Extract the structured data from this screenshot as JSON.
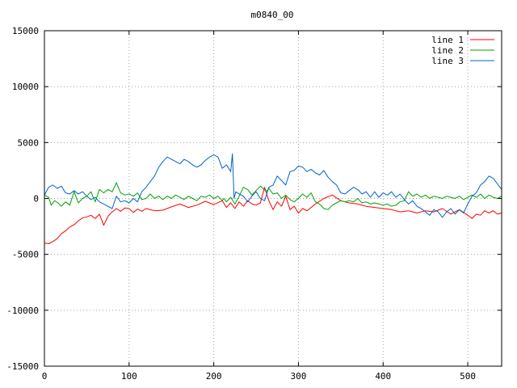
{
  "chart_data": {
    "type": "line",
    "title": "m0840_00",
    "xlabel": "",
    "ylabel": "",
    "xlim": [
      0,
      540
    ],
    "ylim": [
      -15000,
      15000
    ],
    "x_ticks": [
      0,
      100,
      200,
      300,
      400,
      500
    ],
    "y_ticks": [
      -15000,
      -10000,
      -5000,
      0,
      5000,
      10000,
      15000
    ],
    "grid": true,
    "legend_position": "top-right",
    "series": [
      {
        "name": "line 1",
        "color": "#ff0000",
        "points": [
          [
            0,
            -4000
          ],
          [
            5,
            -4050
          ],
          [
            10,
            -3850
          ],
          [
            15,
            -3600
          ],
          [
            20,
            -3150
          ],
          [
            25,
            -2900
          ],
          [
            30,
            -2550
          ],
          [
            35,
            -2350
          ],
          [
            40,
            -2000
          ],
          [
            45,
            -1750
          ],
          [
            50,
            -1650
          ],
          [
            55,
            -1500
          ],
          [
            60,
            -1800
          ],
          [
            65,
            -1400
          ],
          [
            70,
            -2400
          ],
          [
            75,
            -1600
          ],
          [
            80,
            -1200
          ],
          [
            85,
            -900
          ],
          [
            90,
            -1150
          ],
          [
            95,
            -850
          ],
          [
            100,
            -900
          ],
          [
            105,
            -1250
          ],
          [
            110,
            -950
          ],
          [
            115,
            -1150
          ],
          [
            120,
            -900
          ],
          [
            130,
            -1100
          ],
          [
            140,
            -1050
          ],
          [
            150,
            -750
          ],
          [
            160,
            -500
          ],
          [
            170,
            -800
          ],
          [
            180,
            -600
          ],
          [
            190,
            -250
          ],
          [
            200,
            -550
          ],
          [
            210,
            -200
          ],
          [
            215,
            -800
          ],
          [
            220,
            -400
          ],
          [
            225,
            -900
          ],
          [
            230,
            -300
          ],
          [
            235,
            -700
          ],
          [
            240,
            -200
          ],
          [
            245,
            -500
          ],
          [
            250,
            -600
          ],
          [
            255,
            -400
          ],
          [
            260,
            1000
          ],
          [
            265,
            -200
          ],
          [
            270,
            -1000
          ],
          [
            275,
            -300
          ],
          [
            280,
            -700
          ],
          [
            285,
            200
          ],
          [
            290,
            -1000
          ],
          [
            295,
            -700
          ],
          [
            300,
            -1300
          ],
          [
            305,
            -900
          ],
          [
            310,
            -1100
          ],
          [
            315,
            -800
          ],
          [
            320,
            -500
          ],
          [
            330,
            0
          ],
          [
            340,
            300
          ],
          [
            350,
            -200
          ],
          [
            360,
            -400
          ],
          [
            370,
            -500
          ],
          [
            380,
            -700
          ],
          [
            390,
            -800
          ],
          [
            400,
            -900
          ],
          [
            410,
            -1000
          ],
          [
            420,
            -1200
          ],
          [
            430,
            -1100
          ],
          [
            440,
            -1300
          ],
          [
            450,
            -1100
          ],
          [
            460,
            -1200
          ],
          [
            470,
            -900
          ],
          [
            480,
            -1400
          ],
          [
            490,
            -1000
          ],
          [
            500,
            -1500
          ],
          [
            505,
            -1800
          ],
          [
            510,
            -1400
          ],
          [
            515,
            -1500
          ],
          [
            520,
            -1100
          ],
          [
            525,
            -1300
          ],
          [
            530,
            -1100
          ],
          [
            535,
            -1400
          ],
          [
            540,
            -1300
          ]
        ]
      },
      {
        "name": "line 2",
        "color": "#00a000",
        "points": [
          [
            0,
            300
          ],
          [
            5,
            100
          ],
          [
            8,
            -600
          ],
          [
            12,
            -200
          ],
          [
            16,
            -400
          ],
          [
            20,
            -700
          ],
          [
            25,
            -300
          ],
          [
            30,
            -600
          ],
          [
            35,
            600
          ],
          [
            40,
            -400
          ],
          [
            45,
            0
          ],
          [
            50,
            200
          ],
          [
            55,
            600
          ],
          [
            60,
            -300
          ],
          [
            65,
            800
          ],
          [
            70,
            500
          ],
          [
            75,
            800
          ],
          [
            80,
            600
          ],
          [
            85,
            1400
          ],
          [
            90,
            500
          ],
          [
            95,
            300
          ],
          [
            100,
            400
          ],
          [
            105,
            200
          ],
          [
            110,
            500
          ],
          [
            115,
            -100
          ],
          [
            120,
            0
          ],
          [
            125,
            400
          ],
          [
            130,
            0
          ],
          [
            135,
            200
          ],
          [
            140,
            -100
          ],
          [
            145,
            200
          ],
          [
            150,
            0
          ],
          [
            155,
            300
          ],
          [
            160,
            100
          ],
          [
            165,
            -100
          ],
          [
            170,
            200
          ],
          [
            175,
            0
          ],
          [
            180,
            -200
          ],
          [
            185,
            200
          ],
          [
            190,
            100
          ],
          [
            195,
            300
          ],
          [
            200,
            0
          ],
          [
            205,
            200
          ],
          [
            210,
            -200
          ],
          [
            212,
            0
          ],
          [
            215,
            -300
          ],
          [
            220,
            100
          ],
          [
            225,
            -500
          ],
          [
            230,
            200
          ],
          [
            235,
            1000
          ],
          [
            240,
            800
          ],
          [
            245,
            300
          ],
          [
            250,
            700
          ],
          [
            255,
            1100
          ],
          [
            258,
            900
          ],
          [
            262,
            600
          ],
          [
            265,
            900
          ],
          [
            270,
            400
          ],
          [
            275,
            500
          ],
          [
            280,
            0
          ],
          [
            285,
            300
          ],
          [
            290,
            -100
          ],
          [
            295,
            -300
          ],
          [
            300,
            0
          ],
          [
            305,
            400
          ],
          [
            310,
            100
          ],
          [
            315,
            500
          ],
          [
            320,
            -300
          ],
          [
            325,
            -500
          ],
          [
            330,
            -900
          ],
          [
            335,
            -1000
          ],
          [
            340,
            -600
          ],
          [
            345,
            -400
          ],
          [
            350,
            -200
          ],
          [
            355,
            -300
          ],
          [
            360,
            -200
          ],
          [
            365,
            -300
          ],
          [
            370,
            0
          ],
          [
            375,
            -400
          ],
          [
            380,
            -300
          ],
          [
            385,
            -500
          ],
          [
            390,
            -400
          ],
          [
            395,
            -500
          ],
          [
            400,
            -600
          ],
          [
            405,
            -500
          ],
          [
            410,
            -700
          ],
          [
            415,
            -600
          ],
          [
            420,
            -300
          ],
          [
            425,
            -200
          ],
          [
            430,
            600
          ],
          [
            435,
            200
          ],
          [
            440,
            400
          ],
          [
            445,
            100
          ],
          [
            450,
            300
          ],
          [
            455,
            0
          ],
          [
            460,
            200
          ],
          [
            465,
            100
          ],
          [
            470,
            0
          ],
          [
            475,
            200
          ],
          [
            480,
            100
          ],
          [
            485,
            0
          ],
          [
            490,
            200
          ],
          [
            495,
            -100
          ],
          [
            500,
            100
          ],
          [
            505,
            300
          ],
          [
            510,
            100
          ],
          [
            515,
            400
          ],
          [
            520,
            0
          ],
          [
            525,
            300
          ],
          [
            530,
            100
          ],
          [
            535,
            0
          ],
          [
            540,
            200
          ]
        ]
      },
      {
        "name": "line 3",
        "color": "#0064c8",
        "points": [
          [
            0,
            300
          ],
          [
            5,
            1000
          ],
          [
            10,
            1200
          ],
          [
            15,
            900
          ],
          [
            20,
            1100
          ],
          [
            25,
            500
          ],
          [
            30,
            400
          ],
          [
            35,
            700
          ],
          [
            40,
            400
          ],
          [
            45,
            600
          ],
          [
            50,
            200
          ],
          [
            55,
            -100
          ],
          [
            60,
            100
          ],
          [
            65,
            -300
          ],
          [
            70,
            -500
          ],
          [
            75,
            -700
          ],
          [
            80,
            -900
          ],
          [
            85,
            200
          ],
          [
            90,
            -300
          ],
          [
            95,
            -200
          ],
          [
            100,
            -400
          ],
          [
            105,
            0
          ],
          [
            110,
            -300
          ],
          [
            115,
            600
          ],
          [
            120,
            1000
          ],
          [
            125,
            1500
          ],
          [
            130,
            2000
          ],
          [
            135,
            2800
          ],
          [
            140,
            3300
          ],
          [
            145,
            3700
          ],
          [
            150,
            3500
          ],
          [
            155,
            3300
          ],
          [
            160,
            3100
          ],
          [
            165,
            3500
          ],
          [
            170,
            3300
          ],
          [
            175,
            3000
          ],
          [
            180,
            2800
          ],
          [
            185,
            3000
          ],
          [
            190,
            3400
          ],
          [
            195,
            3700
          ],
          [
            200,
            3900
          ],
          [
            205,
            3700
          ],
          [
            210,
            2700
          ],
          [
            215,
            3000
          ],
          [
            220,
            2400
          ],
          [
            222,
            4000
          ],
          [
            224,
            0
          ],
          [
            226,
            600
          ],
          [
            230,
            400
          ],
          [
            235,
            200
          ],
          [
            240,
            -300
          ],
          [
            245,
            200
          ],
          [
            250,
            600
          ],
          [
            255,
            0
          ],
          [
            260,
            -200
          ],
          [
            265,
            1000
          ],
          [
            270,
            1200
          ],
          [
            275,
            2000
          ],
          [
            280,
            1600
          ],
          [
            285,
            1200
          ],
          [
            290,
            2400
          ],
          [
            295,
            2500
          ],
          [
            300,
            2900
          ],
          [
            305,
            2800
          ],
          [
            310,
            2400
          ],
          [
            315,
            2600
          ],
          [
            320,
            2300
          ],
          [
            325,
            2100
          ],
          [
            330,
            2500
          ],
          [
            335,
            1900
          ],
          [
            340,
            1500
          ],
          [
            345,
            1200
          ],
          [
            350,
            500
          ],
          [
            355,
            400
          ],
          [
            360,
            700
          ],
          [
            365,
            1000
          ],
          [
            370,
            800
          ],
          [
            375,
            400
          ],
          [
            380,
            600
          ],
          [
            385,
            100
          ],
          [
            390,
            600
          ],
          [
            395,
            100
          ],
          [
            400,
            500
          ],
          [
            405,
            300
          ],
          [
            410,
            600
          ],
          [
            415,
            100
          ],
          [
            420,
            400
          ],
          [
            425,
            -100
          ],
          [
            430,
            -500
          ],
          [
            435,
            -200
          ],
          [
            440,
            -700
          ],
          [
            445,
            -900
          ],
          [
            450,
            -1200
          ],
          [
            455,
            -1500
          ],
          [
            460,
            -1000
          ],
          [
            465,
            -1200
          ],
          [
            470,
            -1700
          ],
          [
            475,
            -1200
          ],
          [
            480,
            -900
          ],
          [
            485,
            -1400
          ],
          [
            490,
            -1000
          ],
          [
            495,
            -1300
          ],
          [
            500,
            -500
          ],
          [
            505,
            200
          ],
          [
            510,
            500
          ],
          [
            515,
            1200
          ],
          [
            520,
            1500
          ],
          [
            525,
            2000
          ],
          [
            530,
            1800
          ],
          [
            535,
            1300
          ],
          [
            540,
            800
          ]
        ]
      }
    ]
  }
}
